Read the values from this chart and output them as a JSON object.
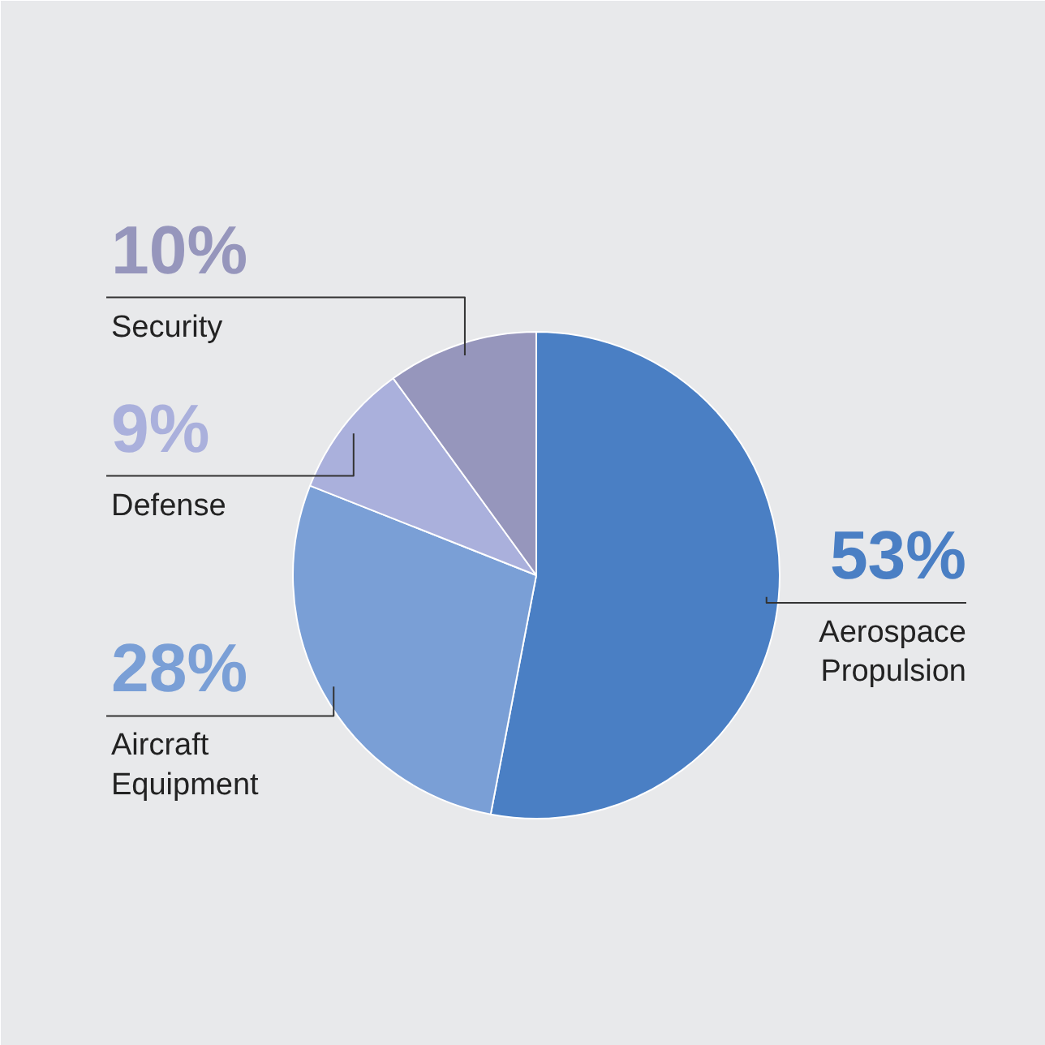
{
  "chart_data": {
    "type": "pie",
    "categories": [
      "Aerospace Propulsion",
      "Aircraft Equipment",
      "Defense",
      "Security"
    ],
    "values": [
      53,
      28,
      9,
      10
    ],
    "colors": [
      "#4a7fc4",
      "#7a9fd6",
      "#aab0dc",
      "#9696bc"
    ],
    "value_labels": [
      "53%",
      "28%",
      "9%",
      "10%"
    ]
  }
}
